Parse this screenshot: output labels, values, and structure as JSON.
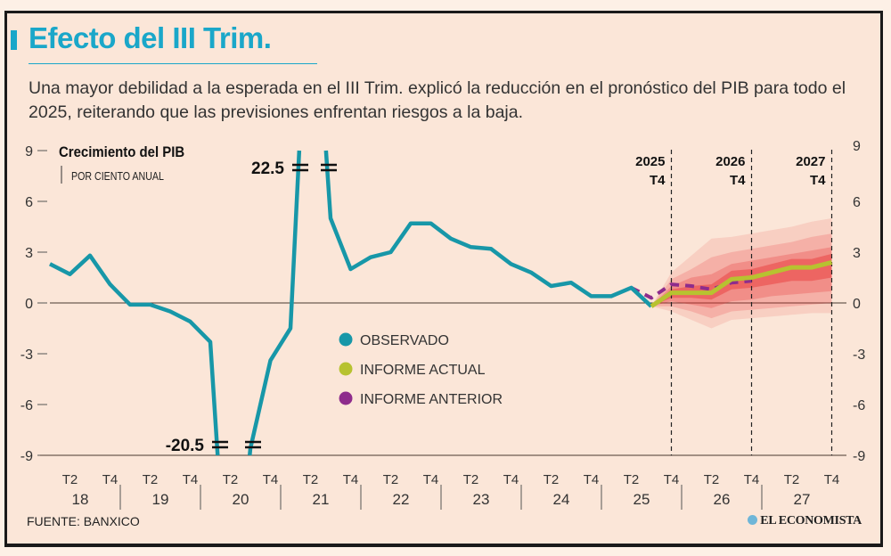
{
  "header": {
    "title": "Efecto del III Trim.",
    "subtitle": "Una mayor debilidad a la esperada en el III Trim. explicó la reducción en el pronóstico del PIB para todo el 2025, reiterando que las previsiones enfrentan riesgos a la baja."
  },
  "footer": {
    "source": "FUENTE: BANXICO",
    "brand": "EL ECONOMISTA"
  },
  "colors": {
    "title": "#1aa7c9",
    "observed": "#1797a8",
    "current": "#b7c230",
    "previous": "#8e2c8c",
    "fan": "#e8282b",
    "background": "#fbe6d8"
  },
  "chart_data": {
    "type": "line",
    "title": "Crecimiento del PIB",
    "subtitle": "POR CIENTO ANUAL",
    "ylim": [
      -9,
      9
    ],
    "yticks": [
      "9",
      "6",
      "3",
      "0",
      "-3",
      "-6",
      "-9"
    ],
    "ytick_values": [
      9,
      6,
      3,
      0,
      -3,
      -6,
      -9
    ],
    "quarter_labels": [
      "T2",
      "T4"
    ],
    "years": [
      "18",
      "19",
      "20",
      "21",
      "22",
      "23",
      "24",
      "25",
      "26",
      "27"
    ],
    "first_period": "2018 T1",
    "break_annotations": [
      {
        "label": "22.5",
        "period_index": 13
      },
      {
        "label": "-20.5",
        "period_index": 9
      }
    ],
    "markers": [
      {
        "line1": "2025",
        "line2": "T4",
        "period_index": 31
      },
      {
        "line1": "2026",
        "line2": "T4",
        "period_index": 35
      },
      {
        "line1": "2027",
        "line2": "T4",
        "period_index": 39
      }
    ],
    "legend": [
      "OBSERVADO",
      "INFORME ACTUAL",
      "INFORME ANTERIOR"
    ],
    "series": [
      {
        "name": "OBSERVADO",
        "start_index": 0,
        "values": [
          2.3,
          1.7,
          2.8,
          1.1,
          -0.1,
          -0.1,
          -0.5,
          -1.1,
          -2.3,
          -20.5,
          -8.6,
          -3.4,
          -1.5,
          22.5,
          5.0,
          2.0,
          2.7,
          3.0,
          4.7,
          4.7,
          3.8,
          3.3,
          3.2,
          2.3,
          1.8,
          1.0,
          1.2,
          0.4,
          0.4,
          0.9,
          -0.2
        ]
      },
      {
        "name": "INFORME ACTUAL",
        "start_index": 30,
        "values": [
          -0.2,
          0.6,
          0.6,
          0.6,
          1.4,
          1.5,
          1.8,
          2.1,
          2.1,
          2.4
        ]
      },
      {
        "name": "INFORME ANTERIOR",
        "start_index": 29,
        "values": [
          0.9,
          0.3,
          1.1,
          1.0,
          0.8,
          1.2,
          1.3
        ]
      }
    ],
    "fan": {
      "start_index": 30,
      "bands": [
        {
          "lower": [
            -0.2,
            -0.5,
            -1.0,
            -1.5,
            -1.0,
            -0.9,
            -0.8,
            -0.7,
            -0.6,
            -0.6
          ],
          "upper": [
            -0.2,
            1.8,
            2.8,
            3.8,
            3.9,
            4.1,
            4.3,
            4.5,
            4.8,
            5.0
          ]
        },
        {
          "lower": [
            -0.2,
            -0.2,
            -0.5,
            -0.9,
            -0.5,
            -0.4,
            -0.3,
            -0.2,
            -0.1,
            0.0
          ],
          "upper": [
            -0.2,
            1.4,
            2.0,
            2.7,
            3.0,
            3.2,
            3.4,
            3.6,
            3.9,
            4.1
          ]
        },
        {
          "lower": [
            -0.2,
            0.1,
            -0.1,
            -0.3,
            0.1,
            0.2,
            0.4,
            0.5,
            0.6,
            0.7
          ],
          "upper": [
            -0.2,
            1.0,
            1.5,
            1.7,
            2.3,
            2.5,
            2.7,
            2.9,
            3.1,
            3.3
          ]
        },
        {
          "lower": [
            -0.2,
            0.3,
            0.3,
            0.2,
            0.8,
            0.9,
            1.1,
            1.3,
            1.3,
            1.5
          ],
          "upper": [
            -0.2,
            0.8,
            1.0,
            1.1,
            1.9,
            2.0,
            2.3,
            2.6,
            2.6,
            2.9
          ]
        }
      ]
    }
  }
}
